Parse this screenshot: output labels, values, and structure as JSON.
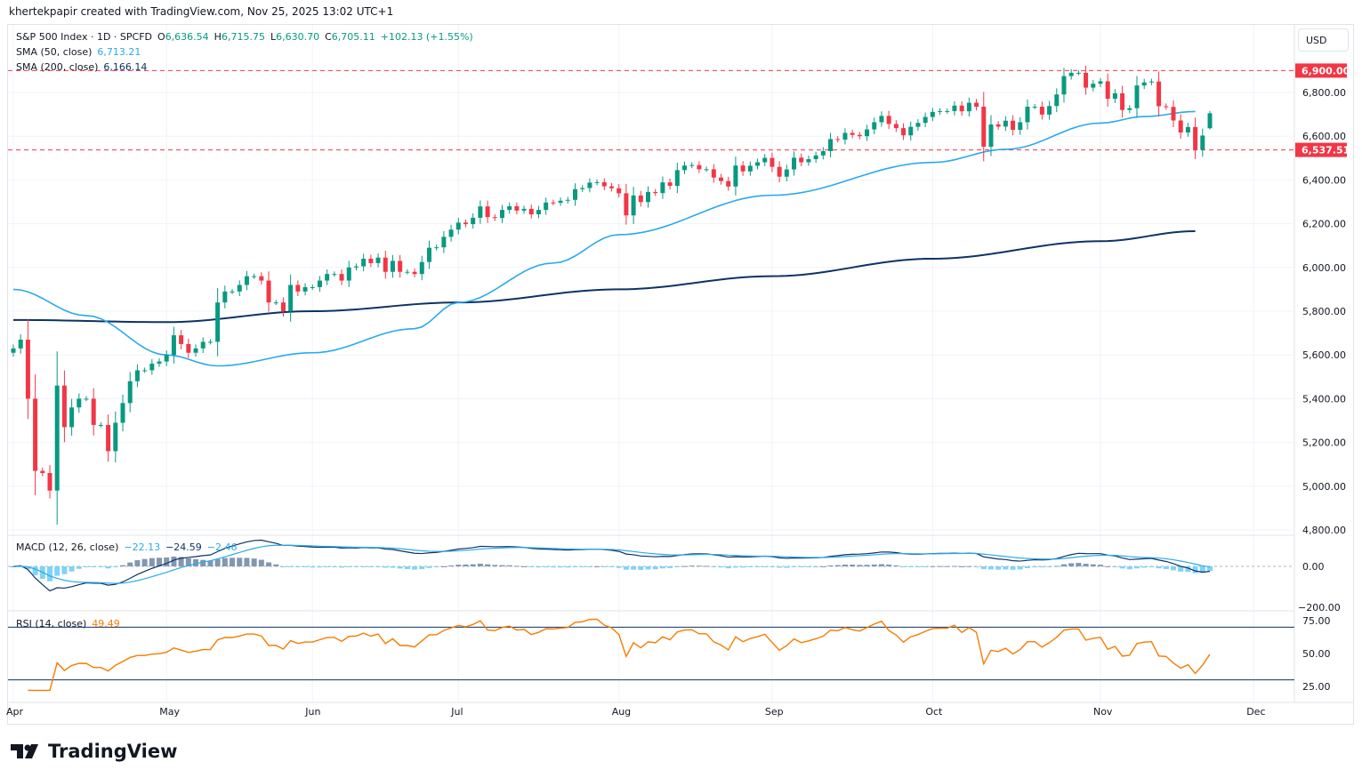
{
  "credit": "khertekpapir created with TradingView.com, Nov 25, 2025 13:02 UTC+1",
  "legend": {
    "symbol": "S&P 500 Index · 1D · SPCFD",
    "o_label": "O",
    "o": "6,636.54",
    "h_label": "H",
    "h": "6,715.75",
    "l_label": "L",
    "l": "6,630.70",
    "c_label": "C",
    "c": "6,705.11",
    "change": "+102.13 (+1.55%)",
    "sma50_label": "SMA (50, close)",
    "sma50": "6,713.21",
    "sma200_label": "SMA (200, close)",
    "sma200": "6,166.14",
    "macd_label": "MACD (12, 26, close)",
    "macd": "−22.13",
    "signal": "−24.59",
    "hist": "−2.46",
    "rsi_label": "RSI (14, close)",
    "rsi": "49.49"
  },
  "currency": "USD",
  "logo": "TradingView",
  "colors": {
    "up": "#089981",
    "down": "#f23645",
    "sma50": "#29a9ec",
    "sma200": "#0c3366",
    "rsi": "#f57c00",
    "macd": "#0c3366",
    "signal": "#29a9ec"
  },
  "chart_data": {
    "type": "candlestick",
    "title": "S&P 500 Index · 1D · SPCFD",
    "y_ticks": [
      "6,800.00",
      "6,600.00",
      "6,400.00",
      "6,200.00",
      "6,000.00",
      "5,800.00",
      "5,600.00",
      "5,400.00",
      "5,200.00",
      "5,000.00",
      "4,800.00"
    ],
    "y_tick_values": [
      6800,
      6600,
      6400,
      6200,
      6000,
      5800,
      5600,
      5400,
      5200,
      5000,
      4800
    ],
    "ylim": [
      4780,
      6960
    ],
    "price_lines": [
      {
        "value": 6900,
        "label": "6,900.00"
      },
      {
        "value": 6537.51,
        "label": "6,537.51"
      }
    ],
    "x_labels": [
      "Apr",
      "May",
      "Jun",
      "Jul",
      "Aug",
      "Sep",
      "Oct",
      "Nov",
      "Dec"
    ],
    "x_label_index": [
      0,
      21,
      41,
      61,
      83,
      104,
      126,
      149,
      170
    ],
    "last_open": 6636.54,
    "last_high": 6715.75,
    "last_low": 6630.7,
    "closes": [
      5630,
      5670,
      5400,
      5070,
      5060,
      4980,
      5460,
      5270,
      5360,
      5400,
      5400,
      5280,
      5280,
      5160,
      5290,
      5380,
      5480,
      5530,
      5530,
      5560,
      5570,
      5600,
      5690,
      5650,
      5610,
      5630,
      5660,
      5660,
      5840,
      5890,
      5890,
      5920,
      5960,
      5960,
      5940,
      5840,
      5840,
      5800,
      5920,
      5890,
      5910,
      5910,
      5940,
      5970,
      5970,
      5940,
      6000,
      6005,
      6040,
      6020,
      6045,
      5980,
      6030,
      5980,
      5980,
      5970,
      6025,
      6090,
      6092,
      6140,
      6173,
      6205,
      6198,
      6227,
      6279,
      6230,
      6226,
      6263,
      6280,
      6260,
      6268,
      6243,
      6263,
      6297,
      6296,
      6305,
      6309,
      6358,
      6363,
      6388,
      6390,
      6371,
      6362,
      6339,
      6238,
      6329,
      6299,
      6345,
      6340,
      6389,
      6373,
      6445,
      6466,
      6468,
      6449,
      6449,
      6411,
      6395,
      6370,
      6466,
      6439,
      6465,
      6481,
      6501,
      6460,
      6415,
      6448,
      6502,
      6481,
      6495,
      6512,
      6532,
      6587,
      6584,
      6615,
      6606,
      6600,
      6631,
      6664,
      6693,
      6656,
      6637,
      6604,
      6643,
      6661,
      6688,
      6711,
      6715,
      6715,
      6740,
      6714,
      6753,
      6735,
      6552,
      6654,
      6644,
      6671,
      6629,
      6664,
      6735,
      6735,
      6699,
      6738,
      6791,
      6875,
      6890,
      6890,
      6822,
      6840,
      6851,
      6771,
      6796,
      6720,
      6728,
      6832,
      6846,
      6850,
      6737,
      6734,
      6672,
      6617,
      6642,
      6538,
      6603,
      6705
    ],
    "sma50": [
      [
        0,
        5900
      ],
      [
        10,
        5780
      ],
      [
        21,
        5600
      ],
      [
        28,
        5550
      ],
      [
        41,
        5610
      ],
      [
        55,
        5720
      ],
      [
        61,
        5840
      ],
      [
        74,
        6020
      ],
      [
        83,
        6150
      ],
      [
        104,
        6330
      ],
      [
        126,
        6480
      ],
      [
        136,
        6540
      ],
      [
        149,
        6660
      ],
      [
        155,
        6690
      ],
      [
        162,
        6713
      ]
    ],
    "sma200": [
      [
        0,
        5760
      ],
      [
        21,
        5750
      ],
      [
        41,
        5800
      ],
      [
        61,
        5840
      ],
      [
        83,
        5900
      ],
      [
        104,
        5960
      ],
      [
        126,
        6040
      ],
      [
        149,
        6120
      ],
      [
        162,
        6166
      ]
    ],
    "macd_ticks": [
      "0.00",
      "−200.00"
    ],
    "rsi_ticks": [
      "75.00",
      "50.00",
      "25.00"
    ],
    "rsi_bands": [
      70,
      30
    ]
  }
}
